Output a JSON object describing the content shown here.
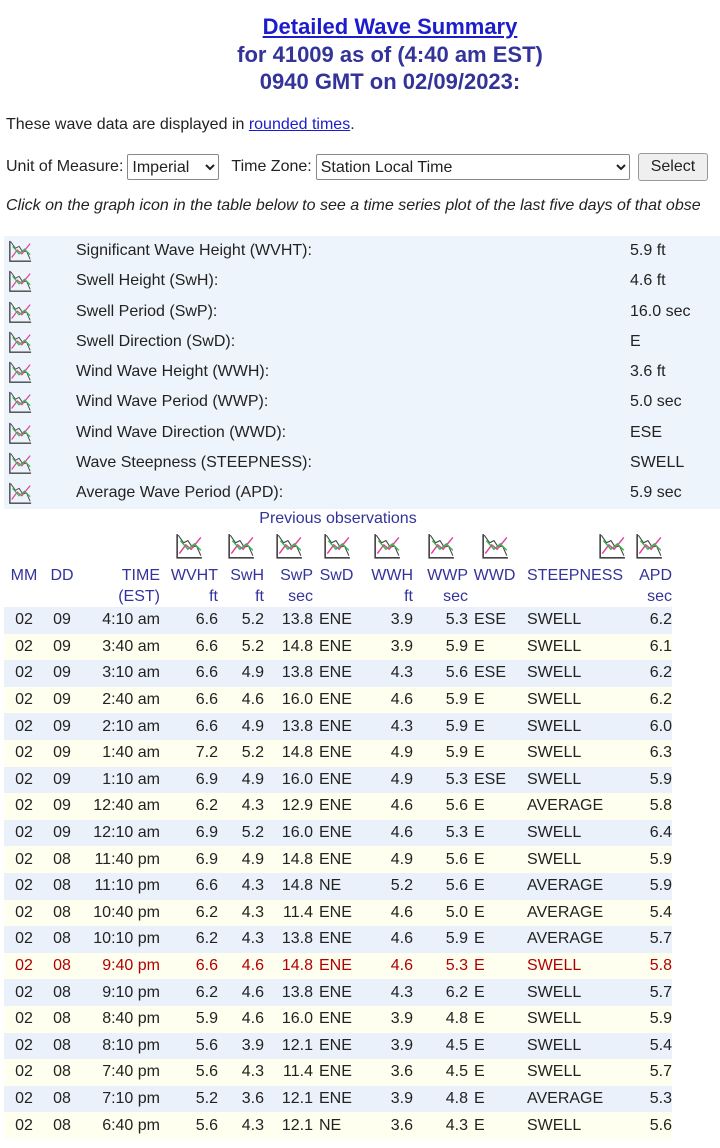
{
  "header": {
    "title": "Detailed Wave Summary",
    "line2": "for 41009 as of (4:40 am EST)",
    "line3": "0940 GMT on 02/09/2023:"
  },
  "intro": {
    "text": "These wave data are displayed in ",
    "link": "rounded times",
    "end": "."
  },
  "controls": {
    "unit_label": "Unit of Measure:",
    "unit_value": "Imperial",
    "tz_label": "Time Zone:",
    "tz_value": "Station Local Time",
    "button": "Select"
  },
  "note": "Click on the graph icon in the table below to see a time series plot of the last five days of that obse",
  "summary": [
    {
      "label": "Significant Wave Height (WVHT):",
      "value": "5.9 ft"
    },
    {
      "label": "Swell Height (SwH):",
      "value": "4.6 ft"
    },
    {
      "label": "Swell Period (SwP):",
      "value": "16.0 sec"
    },
    {
      "label": "Swell Direction (SwD):",
      "value": "E"
    },
    {
      "label": "Wind Wave Height (WWH):",
      "value": "3.6 ft"
    },
    {
      "label": "Wind Wave Period (WWP):",
      "value": "5.0 sec"
    },
    {
      "label": "Wind Wave Direction (WWD):",
      "value": "ESE"
    },
    {
      "label": "Wave Steepness (STEEPNESS):",
      "value": "SWELL"
    },
    {
      "label": "Average Wave Period (APD):",
      "value": "5.9 sec"
    }
  ],
  "observations": {
    "caption": "Previous observations",
    "columns": [
      {
        "name": "MM"
      },
      {
        "name": "DD"
      },
      {
        "name": "TIME",
        "unit": "(EST)"
      },
      {
        "name": "WVHT",
        "unit": "ft"
      },
      {
        "name": "SwH",
        "unit": "ft"
      },
      {
        "name": "SwP",
        "unit": "sec"
      },
      {
        "name": "SwD"
      },
      {
        "name": "WWH",
        "unit": "ft"
      },
      {
        "name": "WWP",
        "unit": "sec"
      },
      {
        "name": "WWD"
      },
      {
        "name": "STEEPNESS"
      },
      {
        "name": "APD",
        "unit": "sec"
      }
    ],
    "rows": [
      [
        "02",
        "09",
        "4:10 am",
        "6.6",
        "5.2",
        "13.8",
        "ENE",
        "3.9",
        "5.3",
        "ESE",
        "SWELL",
        "6.2"
      ],
      [
        "02",
        "09",
        "3:40 am",
        "6.6",
        "5.2",
        "14.8",
        "ENE",
        "3.9",
        "5.9",
        "E",
        "SWELL",
        "6.1"
      ],
      [
        "02",
        "09",
        "3:10 am",
        "6.6",
        "4.9",
        "13.8",
        "ENE",
        "4.3",
        "5.6",
        "ESE",
        "SWELL",
        "6.2"
      ],
      [
        "02",
        "09",
        "2:40 am",
        "6.6",
        "4.6",
        "16.0",
        "ENE",
        "4.6",
        "5.9",
        "E",
        "SWELL",
        "6.2"
      ],
      [
        "02",
        "09",
        "2:10 am",
        "6.6",
        "4.9",
        "13.8",
        "ENE",
        "4.3",
        "5.9",
        "E",
        "SWELL",
        "6.0"
      ],
      [
        "02",
        "09",
        "1:40 am",
        "7.2",
        "5.2",
        "14.8",
        "ENE",
        "4.9",
        "5.9",
        "E",
        "SWELL",
        "6.3"
      ],
      [
        "02",
        "09",
        "1:10 am",
        "6.9",
        "4.9",
        "16.0",
        "ENE",
        "4.9",
        "5.3",
        "ESE",
        "SWELL",
        "5.9"
      ],
      [
        "02",
        "09",
        "12:40 am",
        "6.2",
        "4.3",
        "12.9",
        "ENE",
        "4.6",
        "5.6",
        "E",
        "AVERAGE",
        "5.8"
      ],
      [
        "02",
        "09",
        "12:10 am",
        "6.9",
        "5.2",
        "16.0",
        "ENE",
        "4.6",
        "5.3",
        "E",
        "SWELL",
        "6.4"
      ],
      [
        "02",
        "08",
        "11:40 pm",
        "6.9",
        "4.9",
        "14.8",
        "ENE",
        "4.9",
        "5.6",
        "E",
        "SWELL",
        "5.9"
      ],
      [
        "02",
        "08",
        "11:10 pm",
        "6.6",
        "4.3",
        "14.8",
        "NE",
        "5.2",
        "5.6",
        "E",
        "AVERAGE",
        "5.9"
      ],
      [
        "02",
        "08",
        "10:40 pm",
        "6.2",
        "4.3",
        "11.4",
        "ENE",
        "4.6",
        "5.0",
        "E",
        "AVERAGE",
        "5.4"
      ],
      [
        "02",
        "08",
        "10:10 pm",
        "6.2",
        "4.3",
        "13.8",
        "ENE",
        "4.6",
        "5.9",
        "E",
        "AVERAGE",
        "5.7"
      ],
      [
        "02",
        "08",
        "9:40 pm",
        "6.6",
        "4.6",
        "14.8",
        "ENE",
        "4.6",
        "5.3",
        "E",
        "SWELL",
        "5.8"
      ],
      [
        "02",
        "08",
        "9:10 pm",
        "6.2",
        "4.6",
        "13.8",
        "ENE",
        "4.3",
        "6.2",
        "E",
        "SWELL",
        "5.7"
      ],
      [
        "02",
        "08",
        "8:40 pm",
        "5.9",
        "4.6",
        "16.0",
        "ENE",
        "3.9",
        "4.8",
        "E",
        "SWELL",
        "5.9"
      ],
      [
        "02",
        "08",
        "8:10 pm",
        "5.6",
        "3.9",
        "12.1",
        "ENE",
        "3.9",
        "4.5",
        "E",
        "SWELL",
        "5.4"
      ],
      [
        "02",
        "08",
        "7:40 pm",
        "5.6",
        "4.3",
        "11.4",
        "ENE",
        "3.6",
        "4.5",
        "E",
        "SWELL",
        "5.7"
      ],
      [
        "02",
        "08",
        "7:10 pm",
        "5.2",
        "3.6",
        "12.1",
        "ENE",
        "3.9",
        "4.8",
        "E",
        "AVERAGE",
        "5.3"
      ],
      [
        "02",
        "08",
        "6:40 pm",
        "5.6",
        "4.3",
        "12.1",
        "NE",
        "3.6",
        "4.3",
        "E",
        "SWELL",
        "5.6"
      ]
    ]
  }
}
